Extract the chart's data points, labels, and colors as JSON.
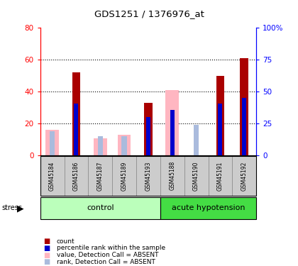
{
  "title": "GDS1251 / 1376976_at",
  "samples": [
    "GSM45184",
    "GSM45186",
    "GSM45187",
    "GSM45189",
    "GSM45193",
    "GSM45188",
    "GSM45190",
    "GSM45191",
    "GSM45192"
  ],
  "count_values": [
    0,
    52,
    0,
    0,
    33,
    0,
    0,
    50,
    61
  ],
  "percentile_values": [
    0,
    41,
    0,
    0,
    30,
    36,
    0,
    41,
    45
  ],
  "absent_value_values": [
    16,
    0,
    11,
    13,
    0,
    41,
    0,
    0,
    0
  ],
  "absent_rank_values": [
    19,
    0,
    15,
    15,
    0,
    0,
    24,
    0,
    0
  ],
  "left_ylim": [
    0,
    80
  ],
  "right_ylim": [
    0,
    100
  ],
  "left_yticks": [
    0,
    20,
    40,
    60,
    80
  ],
  "right_yticks": [
    0,
    25,
    50,
    75,
    100
  ],
  "right_yticklabels": [
    "0",
    "25",
    "50",
    "75",
    "100%"
  ],
  "color_count": "#AA0000",
  "color_percentile": "#0000CC",
  "color_absent_value": "#FFB6C1",
  "color_absent_rank": "#AABBDD",
  "color_group_control": "#BBFFBB",
  "color_group_acute": "#44DD44",
  "color_bg_samples": "#CCCCCC",
  "n_control": 5,
  "n_acute": 4
}
